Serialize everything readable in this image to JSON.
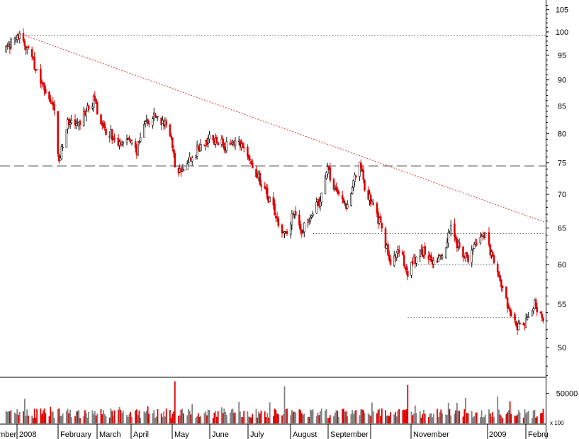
{
  "chart_data": {
    "type": "candlestick",
    "price_axis": {
      "scale": "log",
      "ticks": [
        50,
        55,
        60,
        65,
        70,
        75,
        80,
        85,
        90,
        95,
        100,
        105
      ]
    },
    "volume_axis": {
      "ticks": [
        50000
      ],
      "corner_label": "x 100"
    },
    "time_axis": {
      "labels": [
        "ember",
        "2008",
        "February",
        "March",
        "April",
        "May",
        "June",
        "July",
        "August",
        "September",
        "November",
        "2009",
        "Febru"
      ]
    },
    "price_path": [
      [
        "2007-12-03",
        96
      ],
      [
        "2007-12-12",
        99.5
      ],
      [
        "2007-12-19",
        97
      ],
      [
        "2007-12-28",
        92
      ],
      [
        "2008-01-04",
        88
      ],
      [
        "2008-01-11",
        84
      ],
      [
        "2008-01-15",
        75
      ],
      [
        "2008-01-22",
        82
      ],
      [
        "2008-01-29",
        81
      ],
      [
        "2008-02-05",
        84
      ],
      [
        "2008-02-12",
        86
      ],
      [
        "2008-02-19",
        81
      ],
      [
        "2008-02-26",
        80
      ],
      [
        "2008-03-04",
        78
      ],
      [
        "2008-03-11",
        79
      ],
      [
        "2008-03-18",
        77
      ],
      [
        "2008-03-25",
        82
      ],
      [
        "2008-04-01",
        83
      ],
      [
        "2008-04-08",
        82
      ],
      [
        "2008-04-15",
        80
      ],
      [
        "2008-04-18",
        74
      ],
      [
        "2008-04-25",
        73.5
      ],
      [
        "2008-05-02",
        76
      ],
      [
        "2008-05-09",
        78
      ],
      [
        "2008-05-16",
        79
      ],
      [
        "2008-05-23",
        78.5
      ],
      [
        "2008-05-30",
        78
      ],
      [
        "2008-06-06",
        79
      ],
      [
        "2008-06-13",
        77
      ],
      [
        "2008-06-20",
        74
      ],
      [
        "2008-06-27",
        72
      ],
      [
        "2008-07-04",
        69
      ],
      [
        "2008-07-11",
        66
      ],
      [
        "2008-07-16",
        64
      ],
      [
        "2008-07-23",
        67
      ],
      [
        "2008-07-30",
        65
      ],
      [
        "2008-08-06",
        66
      ],
      [
        "2008-08-13",
        69
      ],
      [
        "2008-08-20",
        74
      ],
      [
        "2008-08-27",
        70
      ],
      [
        "2008-09-03",
        68
      ],
      [
        "2008-09-10",
        72
      ],
      [
        "2008-09-15",
        75
      ],
      [
        "2008-09-19",
        71
      ],
      [
        "2008-09-26",
        68
      ],
      [
        "2008-10-03",
        65
      ],
      [
        "2008-10-10",
        60
      ],
      [
        "2008-10-17",
        62
      ],
      [
        "2008-10-24",
        59
      ],
      [
        "2008-10-31",
        61
      ],
      [
        "2008-11-07",
        62
      ],
      [
        "2008-11-14",
        60
      ],
      [
        "2008-11-21",
        61
      ],
      [
        "2008-11-28",
        65
      ],
      [
        "2008-12-05",
        62
      ],
      [
        "2008-12-12",
        61
      ],
      [
        "2008-12-19",
        63
      ],
      [
        "2008-12-26",
        64
      ],
      [
        "2009-01-02",
        60
      ],
      [
        "2009-01-07",
        58
      ],
      [
        "2009-01-14",
        54
      ],
      [
        "2009-01-21",
        52
      ],
      [
        "2009-01-28",
        53
      ],
      [
        "2009-02-04",
        55
      ],
      [
        "2009-02-11",
        53
      ]
    ],
    "volume_spikes": [
      [
        "2008-04-18",
        70000
      ],
      [
        "2008-07-16",
        62000
      ],
      [
        "2008-10-24",
        64000
      ]
    ],
    "trendline": {
      "from": [
        "2007-12-12",
        99.8
      ],
      "to": [
        "2009-02-13",
        65.8
      ],
      "style": "dotted",
      "color": "#e53935"
    },
    "horizontal_levels": [
      {
        "value": 99.2,
        "from": "2007-12-12",
        "to": "2009-02-13",
        "style": "dotted",
        "color": "#555555"
      },
      {
        "value": 74.5,
        "from": "2007-11-28",
        "to": "2009-02-13",
        "style": "dashed",
        "color": "#555555"
      },
      {
        "value": 64.2,
        "from": "2008-08-08",
        "to": "2009-02-13",
        "style": "dotted",
        "color": "#555555"
      },
      {
        "value": 60.0,
        "from": "2008-10-30",
        "to": "2009-01-07",
        "style": "dotted",
        "color": "#555555"
      },
      {
        "value": 53.4,
        "from": "2008-10-24",
        "to": "2009-01-23",
        "style": "dotted",
        "color": "#555555"
      }
    ],
    "colors": {
      "up": "#111111",
      "down": "#e00000",
      "volume_neutral": "#7f7f7f"
    }
  }
}
